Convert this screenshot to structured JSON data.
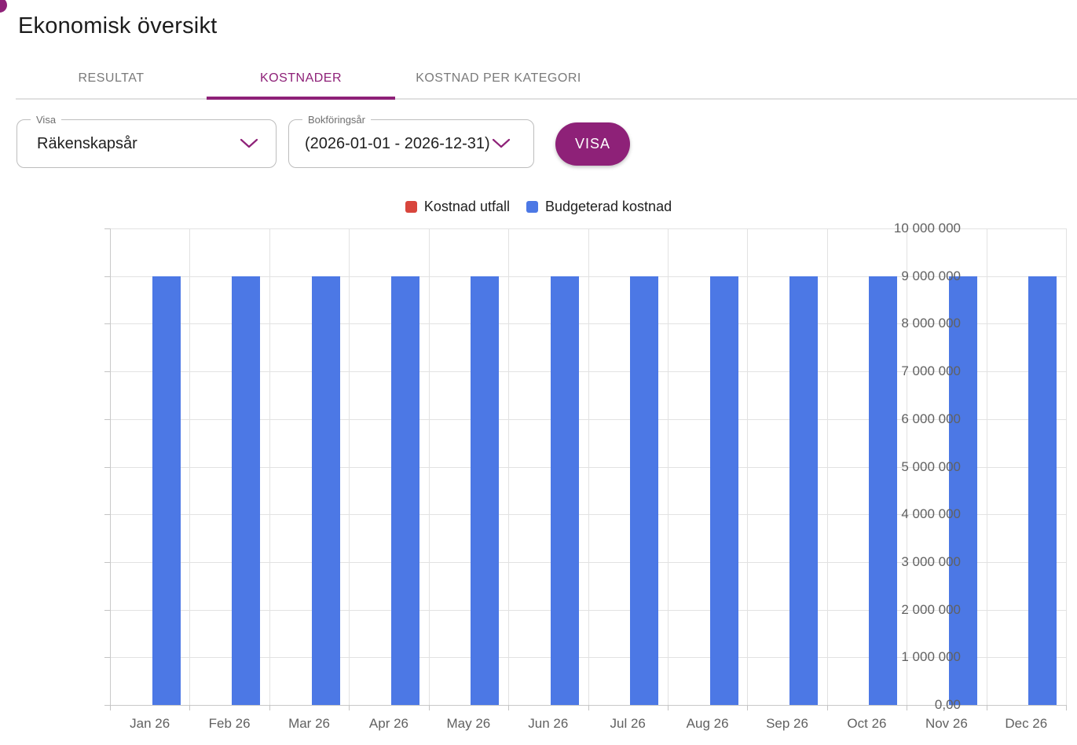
{
  "app": {
    "title": "Ekonomisk översikt"
  },
  "tabs": [
    {
      "label": "RESULTAT",
      "active": false
    },
    {
      "label": "KOSTNADER",
      "active": true
    },
    {
      "label": "KOSTNAD PER KATEGORI",
      "active": false
    }
  ],
  "filters": {
    "show_select": {
      "label": "Visa",
      "value": "Räkenskapsår"
    },
    "fiscal_year_select": {
      "label": "Bokföringsår",
      "value": "(2026-01-01 - 2026-12-31)"
    },
    "submit_button": "VISA"
  },
  "colors": {
    "accent": "#8e2178",
    "series_red": "#d8453c",
    "series_blue": "#4c78e5",
    "grid": "#e2e2e2",
    "axis_label": "#616161"
  },
  "chart_data": {
    "type": "bar",
    "categories": [
      "Jan 26",
      "Feb 26",
      "Mar 26",
      "Apr 26",
      "May 26",
      "Jun 26",
      "Jul 26",
      "Aug 26",
      "Sep 26",
      "Oct 26",
      "Nov 26",
      "Dec 26"
    ],
    "series": [
      {
        "name": "Kostnad utfall",
        "color": "#d8453c",
        "values": [
          0,
          0,
          0,
          0,
          0,
          0,
          0,
          0,
          0,
          0,
          0,
          0
        ]
      },
      {
        "name": "Budgeterad kostnad",
        "color": "#4c78e5",
        "values": [
          9000000,
          9000000,
          9000000,
          9000000,
          9000000,
          9000000,
          9000000,
          9000000,
          9000000,
          9000000,
          9000000,
          9000000
        ]
      }
    ],
    "ylim": [
      0,
      10000000
    ],
    "ytick_labels": [
      "10 000 000",
      "9 000 000",
      "8 000 000",
      "7 000 000",
      "6 000 000",
      "5 000 000",
      "4 000 000",
      "3 000 000",
      "2 000 000",
      "1 000 000",
      "0,00"
    ],
    "grid": true,
    "legend_position": "top"
  }
}
